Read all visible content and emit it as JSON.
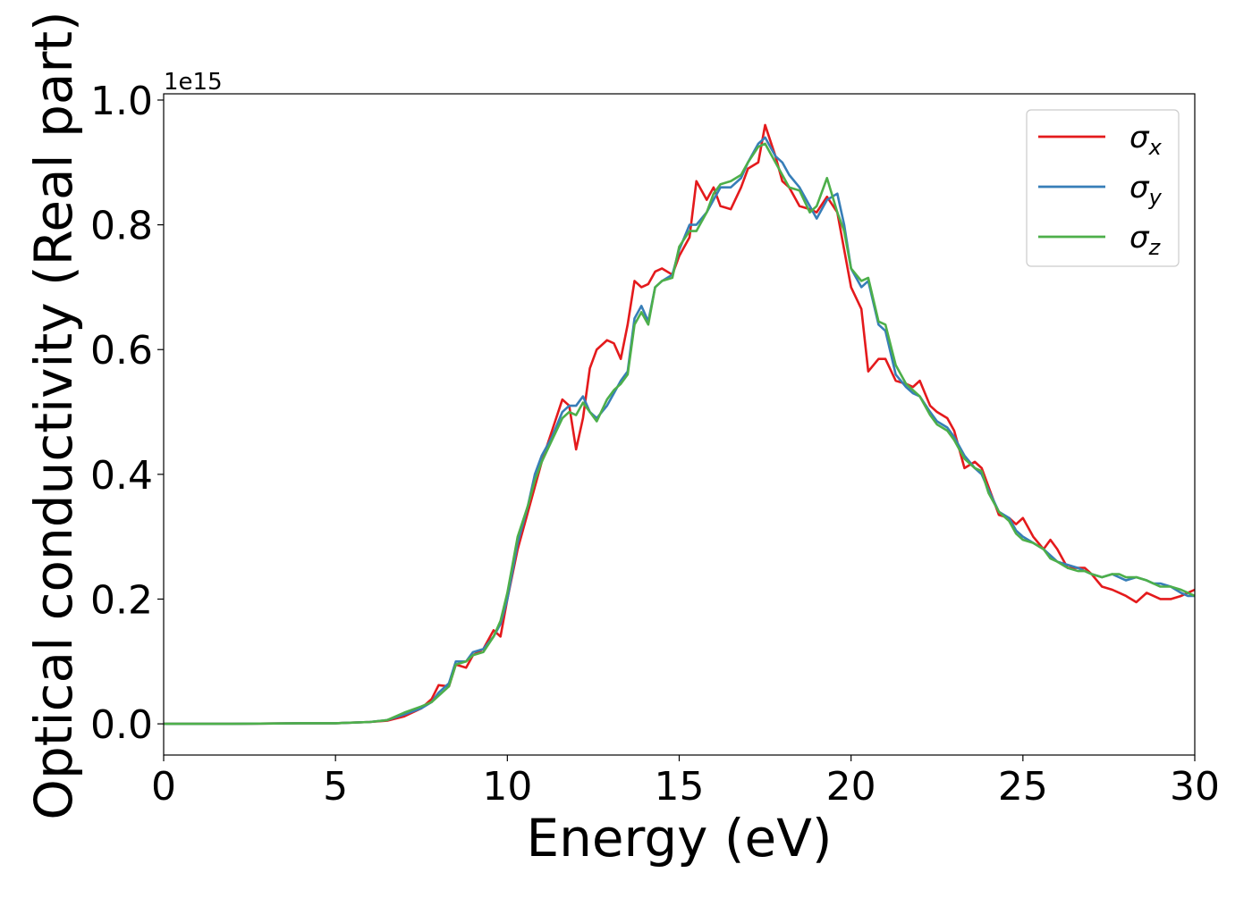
{
  "chart_data": {
    "type": "line",
    "title": "",
    "xlabel": "Energy (eV)",
    "ylabel": "Optical conductivity (Real part)",
    "offset_label": "1e15",
    "xlim": [
      0,
      30
    ],
    "ylim": [
      -0.05,
      1.01
    ],
    "x_ticks": [
      0,
      5,
      10,
      15,
      20,
      25,
      30
    ],
    "y_ticks": [
      0.0,
      0.2,
      0.4,
      0.6,
      0.8,
      1.0
    ],
    "x_tick_labels": [
      "0",
      "5",
      "10",
      "15",
      "20",
      "25",
      "30"
    ],
    "y_tick_labels": [
      "0.0",
      "0.2",
      "0.4",
      "0.6",
      "0.8",
      "1.0"
    ],
    "grid": false,
    "legend_position": "top-right",
    "series": [
      {
        "name": "σx",
        "symbol": "σ",
        "subscript": "x",
        "color": "#e41a1c",
        "x": [
          0,
          2,
          4,
          5,
          6,
          6.5,
          7,
          7.5,
          7.8,
          8,
          8.3,
          8.5,
          8.8,
          9,
          9.3,
          9.6,
          9.8,
          10,
          10.3,
          10.6,
          10.8,
          11,
          11.3,
          11.6,
          11.8,
          12,
          12.2,
          12.4,
          12.6,
          12.9,
          13.1,
          13.3,
          13.5,
          13.7,
          13.9,
          14.1,
          14.3,
          14.5,
          14.8,
          15,
          15.3,
          15.5,
          15.8,
          16,
          16.2,
          16.5,
          16.8,
          17,
          17.3,
          17.5,
          17.8,
          18,
          18.2,
          18.5,
          18.8,
          19,
          19.3,
          19.6,
          19.8,
          20,
          20.3,
          20.5,
          20.8,
          21,
          21.3,
          21.6,
          21.8,
          22,
          22.3,
          22.5,
          22.8,
          23,
          23.3,
          23.6,
          23.8,
          24,
          24.3,
          24.6,
          24.8,
          25,
          25.3,
          25.6,
          25.8,
          26,
          26.3,
          26.6,
          26.8,
          27,
          27.3,
          27.6,
          27.8,
          28,
          28.3,
          28.6,
          28.8,
          29,
          29.3,
          29.6,
          29.8,
          30
        ],
        "y": [
          0.0,
          0.0,
          0.001,
          0.001,
          0.003,
          0.005,
          0.012,
          0.025,
          0.04,
          0.062,
          0.06,
          0.095,
          0.09,
          0.11,
          0.12,
          0.15,
          0.14,
          0.2,
          0.28,
          0.34,
          0.38,
          0.42,
          0.47,
          0.52,
          0.51,
          0.44,
          0.49,
          0.57,
          0.6,
          0.615,
          0.61,
          0.585,
          0.64,
          0.71,
          0.7,
          0.705,
          0.725,
          0.73,
          0.72,
          0.75,
          0.78,
          0.87,
          0.84,
          0.86,
          0.83,
          0.825,
          0.86,
          0.89,
          0.9,
          0.96,
          0.91,
          0.87,
          0.86,
          0.83,
          0.825,
          0.82,
          0.845,
          0.82,
          0.76,
          0.7,
          0.665,
          0.565,
          0.585,
          0.585,
          0.55,
          0.545,
          0.54,
          0.55,
          0.51,
          0.5,
          0.49,
          0.47,
          0.41,
          0.42,
          0.41,
          0.38,
          0.335,
          0.33,
          0.32,
          0.33,
          0.3,
          0.28,
          0.295,
          0.28,
          0.25,
          0.25,
          0.25,
          0.24,
          0.22,
          0.215,
          0.21,
          0.205,
          0.195,
          0.21,
          0.205,
          0.2,
          0.2,
          0.205,
          0.21,
          0.215
        ]
      },
      {
        "name": "σy",
        "symbol": "σ",
        "subscript": "y",
        "color": "#377eb8",
        "x": [
          0,
          2,
          4,
          5,
          6,
          6.5,
          7,
          7.5,
          7.8,
          8,
          8.3,
          8.5,
          8.8,
          9,
          9.3,
          9.6,
          9.8,
          10,
          10.3,
          10.6,
          10.8,
          11,
          11.3,
          11.6,
          11.8,
          12,
          12.2,
          12.4,
          12.6,
          12.9,
          13.1,
          13.3,
          13.5,
          13.7,
          13.9,
          14.1,
          14.3,
          14.5,
          14.8,
          15,
          15.3,
          15.5,
          15.8,
          16,
          16.2,
          16.5,
          16.8,
          17,
          17.3,
          17.5,
          17.8,
          18,
          18.2,
          18.5,
          18.8,
          19,
          19.3,
          19.6,
          19.8,
          20,
          20.3,
          20.5,
          20.8,
          21,
          21.3,
          21.6,
          21.8,
          22,
          22.3,
          22.5,
          22.8,
          23,
          23.3,
          23.6,
          23.8,
          24,
          24.3,
          24.6,
          24.8,
          25,
          25.3,
          25.6,
          25.8,
          26,
          26.3,
          26.6,
          26.8,
          27,
          27.3,
          27.6,
          27.8,
          28,
          28.3,
          28.6,
          28.8,
          29,
          29.3,
          29.6,
          29.8,
          30
        ],
        "y": [
          0.0,
          0.0,
          0.001,
          0.001,
          0.003,
          0.006,
          0.015,
          0.025,
          0.035,
          0.05,
          0.065,
          0.1,
          0.1,
          0.115,
          0.12,
          0.14,
          0.16,
          0.2,
          0.29,
          0.35,
          0.4,
          0.43,
          0.46,
          0.5,
          0.51,
          0.51,
          0.525,
          0.5,
          0.49,
          0.51,
          0.53,
          0.55,
          0.565,
          0.65,
          0.67,
          0.645,
          0.7,
          0.71,
          0.72,
          0.76,
          0.8,
          0.8,
          0.82,
          0.84,
          0.86,
          0.86,
          0.875,
          0.9,
          0.93,
          0.94,
          0.91,
          0.9,
          0.88,
          0.86,
          0.83,
          0.81,
          0.84,
          0.85,
          0.8,
          0.73,
          0.7,
          0.71,
          0.64,
          0.63,
          0.56,
          0.54,
          0.53,
          0.525,
          0.5,
          0.485,
          0.475,
          0.46,
          0.43,
          0.41,
          0.4,
          0.375,
          0.34,
          0.33,
          0.31,
          0.3,
          0.29,
          0.28,
          0.27,
          0.26,
          0.255,
          0.25,
          0.245,
          0.24,
          0.235,
          0.24,
          0.235,
          0.23,
          0.235,
          0.23,
          0.225,
          0.225,
          0.22,
          0.21,
          0.205,
          0.205
        ]
      },
      {
        "name": "σz",
        "symbol": "σ",
        "subscript": "z",
        "color": "#4daf4a",
        "x": [
          0,
          2,
          4,
          5,
          6,
          6.5,
          7,
          7.5,
          7.8,
          8,
          8.3,
          8.5,
          8.8,
          9,
          9.3,
          9.6,
          9.8,
          10,
          10.3,
          10.6,
          10.8,
          11,
          11.3,
          11.6,
          11.8,
          12,
          12.2,
          12.4,
          12.6,
          12.9,
          13.1,
          13.3,
          13.5,
          13.7,
          13.9,
          14.1,
          14.3,
          14.5,
          14.8,
          15,
          15.3,
          15.5,
          15.8,
          16,
          16.2,
          16.5,
          16.8,
          17,
          17.3,
          17.5,
          17.8,
          18,
          18.2,
          18.5,
          18.8,
          19,
          19.3,
          19.6,
          19.8,
          20,
          20.3,
          20.5,
          20.8,
          21,
          21.3,
          21.6,
          21.8,
          22,
          22.3,
          22.5,
          22.8,
          23,
          23.3,
          23.6,
          23.8,
          24,
          24.3,
          24.6,
          24.8,
          25,
          25.3,
          25.6,
          25.8,
          26,
          26.3,
          26.6,
          26.8,
          27,
          27.3,
          27.6,
          27.8,
          28,
          28.3,
          28.6,
          28.8,
          29,
          29.3,
          29.6,
          29.8,
          30
        ],
        "y": [
          0.0,
          0.0,
          0.001,
          0.001,
          0.003,
          0.006,
          0.018,
          0.028,
          0.035,
          0.045,
          0.06,
          0.095,
          0.1,
          0.11,
          0.115,
          0.14,
          0.165,
          0.21,
          0.3,
          0.35,
          0.39,
          0.42,
          0.455,
          0.49,
          0.5,
          0.495,
          0.515,
          0.5,
          0.485,
          0.52,
          0.535,
          0.545,
          0.56,
          0.64,
          0.66,
          0.64,
          0.7,
          0.71,
          0.715,
          0.765,
          0.79,
          0.79,
          0.82,
          0.85,
          0.865,
          0.87,
          0.88,
          0.9,
          0.925,
          0.93,
          0.9,
          0.88,
          0.86,
          0.855,
          0.82,
          0.83,
          0.875,
          0.82,
          0.79,
          0.73,
          0.71,
          0.715,
          0.645,
          0.64,
          0.575,
          0.545,
          0.535,
          0.525,
          0.495,
          0.48,
          0.47,
          0.455,
          0.425,
          0.41,
          0.405,
          0.37,
          0.34,
          0.325,
          0.305,
          0.295,
          0.29,
          0.28,
          0.265,
          0.26,
          0.25,
          0.245,
          0.245,
          0.24,
          0.235,
          0.24,
          0.24,
          0.235,
          0.235,
          0.23,
          0.225,
          0.22,
          0.22,
          0.215,
          0.21,
          0.205
        ]
      }
    ]
  }
}
